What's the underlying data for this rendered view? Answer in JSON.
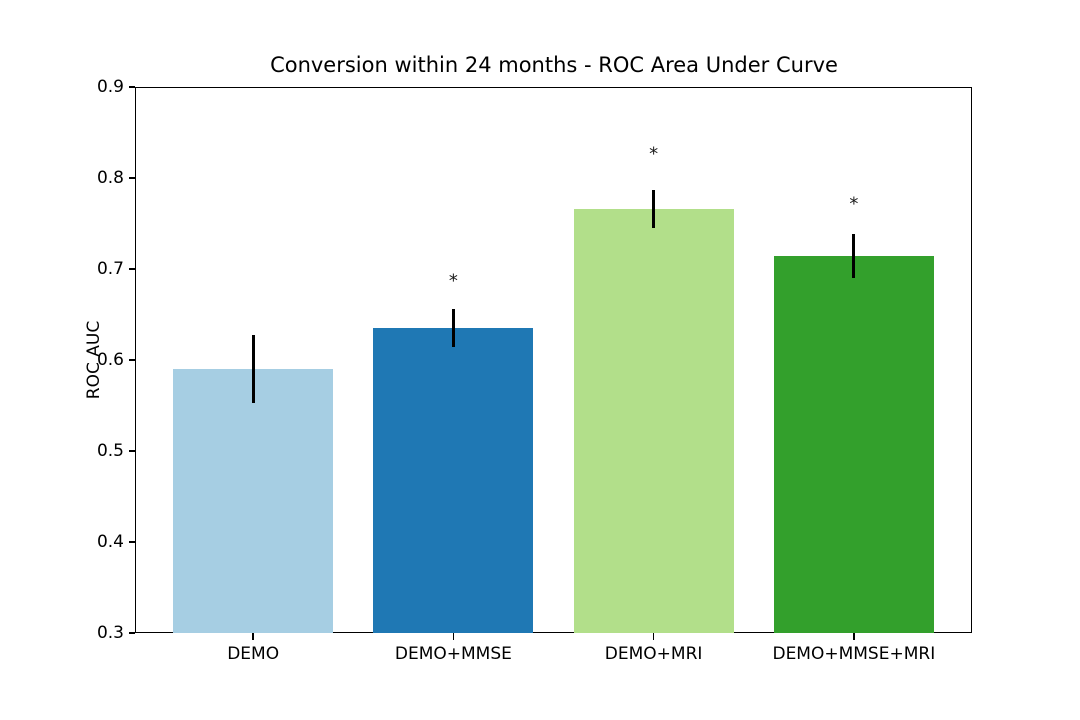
{
  "chart_data": {
    "type": "bar",
    "title": "Conversion within 24 months - ROC Area Under Curve",
    "xlabel": "",
    "ylabel": "ROC AUC",
    "categories": [
      "DEMO",
      "DEMO+MMSE",
      "DEMO+MRI",
      "DEMO+MMSE+MRI"
    ],
    "values": [
      0.59,
      0.635,
      0.766,
      0.714
    ],
    "errors": [
      0.037,
      0.021,
      0.021,
      0.024
    ],
    "bar_colors": [
      "#a6cee3",
      "#1f78b4",
      "#b2df8a",
      "#33a02c"
    ],
    "error_bar_color": "#000000",
    "significance_markers": [
      {
        "index": 1,
        "category": "DEMO+MMSE",
        "marker": "*",
        "y": 0.686
      },
      {
        "index": 2,
        "category": "DEMO+MRI",
        "marker": "*",
        "y": 0.825
      },
      {
        "index": 3,
        "category": "DEMO+MMSE+MRI",
        "marker": "*",
        "y": 0.77
      }
    ],
    "ylim": [
      0.3,
      0.9
    ],
    "yticks": [
      "0.3",
      "0.4",
      "0.5",
      "0.6",
      "0.7",
      "0.8",
      "0.9"
    ],
    "grid": false,
    "legend": null,
    "background_color": "#ffffff"
  }
}
